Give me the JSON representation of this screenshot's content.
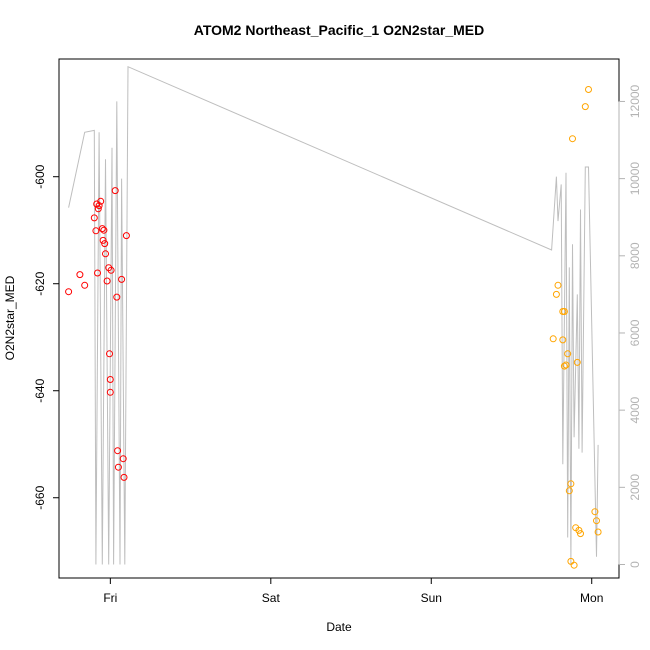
{
  "chart_data": {
    "type": "scatter",
    "title": "ATOM2 Northeast_Pacific_1 O2N2star_MED",
    "xlabel": "Date",
    "ylabel": "O2N2star_MED",
    "x_ticks": [
      {
        "label": "Fri",
        "value": 0
      },
      {
        "label": "Sat",
        "value": 1
      },
      {
        "label": "Sun",
        "value": 2
      },
      {
        "label": "Mon",
        "value": 3
      }
    ],
    "xlim": [
      -0.32,
      3.17
    ],
    "ylim": [
      -675,
      -578
    ],
    "y_ticks": [
      -660,
      -640,
      -620,
      -600
    ],
    "y2_ticks": [
      0,
      2000,
      4000,
      6000,
      8000,
      10000,
      12000
    ],
    "y2lim": [
      -350,
      13100
    ],
    "grid": false,
    "colors": {
      "series_1": "#ff0000",
      "series_2": "#ffa500",
      "line": "#bebebe",
      "right_axis": "#b3b3b3"
    },
    "series": [
      {
        "points": [
          [
            -0.26,
            -621.5
          ],
          [
            -0.19,
            -618.3
          ],
          [
            -0.16,
            -620.3
          ],
          [
            -0.1,
            -607.7
          ],
          [
            -0.09,
            -610.1
          ],
          [
            -0.085,
            -605.1
          ],
          [
            -0.08,
            -618.0
          ],
          [
            -0.075,
            -606.0
          ],
          [
            -0.07,
            -605.4
          ],
          [
            -0.06,
            -604.6
          ],
          [
            -0.05,
            -609.7
          ],
          [
            -0.045,
            -611.9
          ],
          [
            -0.04,
            -610.0
          ],
          [
            -0.035,
            -612.5
          ],
          [
            -0.03,
            -614.4
          ],
          [
            -0.02,
            -619.5
          ],
          [
            -0.01,
            -617.0
          ],
          [
            -0.005,
            -633.1
          ],
          [
            0.0,
            -637.9
          ],
          [
            0.005,
            -617.5
          ],
          [
            0.0,
            -640.3
          ],
          [
            0.03,
            -602.6
          ],
          [
            0.04,
            -622.5
          ],
          [
            0.045,
            -651.2
          ],
          [
            0.05,
            -654.3
          ],
          [
            0.07,
            -619.2
          ],
          [
            0.08,
            -652.7
          ],
          [
            0.085,
            -656.2
          ],
          [
            0.1,
            -611.0
          ]
        ]
      },
      {
        "points": [
          [
            2.76,
            -630.3
          ],
          [
            2.78,
            -622.0
          ],
          [
            2.79,
            -620.3
          ],
          [
            2.82,
            -630.5
          ],
          [
            2.82,
            -625.2
          ],
          [
            2.83,
            -635.4
          ],
          [
            2.83,
            -625.2
          ],
          [
            2.84,
            -635.2
          ],
          [
            2.85,
            -633.1
          ],
          [
            2.86,
            -658.7
          ],
          [
            2.87,
            -657.4
          ],
          [
            2.88,
            -592.9
          ],
          [
            2.89,
            -672.6
          ],
          [
            2.9,
            -665.6
          ],
          [
            2.91,
            -634.7
          ],
          [
            2.92,
            -666.1
          ],
          [
            2.93,
            -666.7
          ],
          [
            2.96,
            -586.9
          ],
          [
            2.98,
            -583.7
          ],
          [
            3.02,
            -662.6
          ],
          [
            3.03,
            -664.3
          ],
          [
            3.04,
            -666.4
          ],
          [
            2.87,
            -671.9
          ]
        ]
      }
    ],
    "line_secondary": {
      "points": [
        [
          -0.26,
          9250
        ],
        [
          -0.16,
          11200
        ],
        [
          -0.1,
          11250
        ],
        [
          -0.09,
          0
        ],
        [
          -0.07,
          11200
        ],
        [
          -0.05,
          0
        ],
        [
          -0.03,
          10500
        ],
        [
          -0.01,
          0
        ],
        [
          0.01,
          10800
        ],
        [
          0.02,
          0
        ],
        [
          0.04,
          12000
        ],
        [
          0.06,
          0
        ],
        [
          0.07,
          10000
        ],
        [
          0.09,
          0
        ],
        [
          0.11,
          12900
        ],
        [
          2.75,
          8150
        ],
        [
          2.78,
          10050
        ],
        [
          2.79,
          8900
        ],
        [
          2.81,
          9850
        ],
        [
          2.82,
          2600
        ],
        [
          2.84,
          10150
        ],
        [
          2.85,
          700
        ],
        [
          2.86,
          7700
        ],
        [
          2.87,
          0
        ],
        [
          2.88,
          8300
        ],
        [
          2.89,
          3300
        ],
        [
          2.91,
          7000
        ],
        [
          2.92,
          3000
        ],
        [
          2.93,
          9200
        ],
        [
          2.94,
          2900
        ],
        [
          2.96,
          10300
        ],
        [
          2.98,
          10300
        ],
        [
          3.03,
          200
        ],
        [
          3.04,
          3100
        ]
      ]
    }
  }
}
